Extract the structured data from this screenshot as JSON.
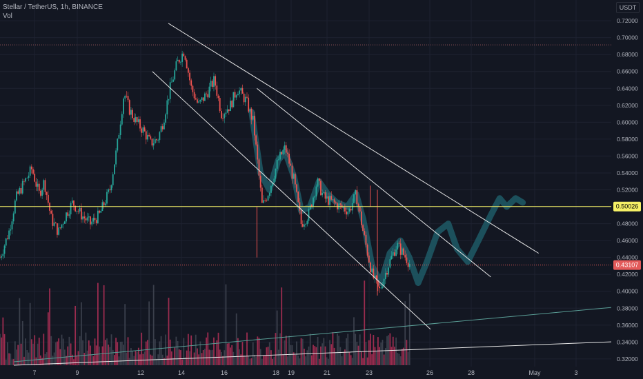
{
  "header": {
    "title": "Stellar / TetherUS, 1h, BINANCE",
    "vol_label": "Vol"
  },
  "price_scale": {
    "currency": "USDT"
  },
  "colors": {
    "background": "#131722",
    "grid": "#1e2230",
    "up": "#26a69a",
    "down": "#ef5350",
    "vol_up": "#3a3f4b",
    "vol_down": "#9b2c4f",
    "projection": "#1f5a66",
    "trendline": "#e6e6e6",
    "support": "#f5f066",
    "support_tag_text": "#000000",
    "current_tag": "#e35a5a",
    "dotted_high": "#f08080",
    "teal_line": "#5a9e96",
    "axis_text": "#b2b5be"
  },
  "chart_data": {
    "type": "candlestick",
    "title": "Stellar / TetherUS, 1h, BINANCE",
    "timeframe": "1h",
    "ylim": [
      0.315,
      0.725
    ],
    "x_ticks": [
      "7",
      "9",
      "12",
      "14",
      "16",
      "18",
      "19",
      "21",
      "23",
      "26",
      "28",
      "May",
      "3"
    ],
    "y_ticks": [
      "0.72000",
      "0.70000",
      "0.68000",
      "0.66000",
      "0.64000",
      "0.62000",
      "0.60000",
      "0.58000",
      "0.56000",
      "0.54000",
      "0.52000",
      "0.50000",
      "0.48000",
      "0.46000",
      "0.44000",
      "0.42000",
      "0.40000",
      "0.38000",
      "0.36000",
      "0.34000",
      "0.32000"
    ],
    "price_path": [
      {
        "x": 0,
        "y": 0.44
      },
      {
        "x": 5,
        "y": 0.47
      },
      {
        "x": 9,
        "y": 0.51
      },
      {
        "x": 14,
        "y": 0.53
      },
      {
        "x": 18,
        "y": 0.545
      },
      {
        "x": 22,
        "y": 0.515
      },
      {
        "x": 25,
        "y": 0.53
      },
      {
        "x": 29,
        "y": 0.485
      },
      {
        "x": 33,
        "y": 0.47
      },
      {
        "x": 37,
        "y": 0.49
      },
      {
        "x": 41,
        "y": 0.505
      },
      {
        "x": 46,
        "y": 0.49
      },
      {
        "x": 51,
        "y": 0.48
      },
      {
        "x": 56,
        "y": 0.49
      },
      {
        "x": 62,
        "y": 0.52
      },
      {
        "x": 66,
        "y": 0.57
      },
      {
        "x": 70,
        "y": 0.635
      },
      {
        "x": 73,
        "y": 0.615
      },
      {
        "x": 77,
        "y": 0.6
      },
      {
        "x": 81,
        "y": 0.59
      },
      {
        "x": 85,
        "y": 0.575
      },
      {
        "x": 89,
        "y": 0.58
      },
      {
        "x": 92,
        "y": 0.6
      },
      {
        "x": 96,
        "y": 0.64
      },
      {
        "x": 100,
        "y": 0.67
      },
      {
        "x": 104,
        "y": 0.685
      },
      {
        "x": 108,
        "y": 0.64
      },
      {
        "x": 112,
        "y": 0.62
      },
      {
        "x": 117,
        "y": 0.635
      },
      {
        "x": 121,
        "y": 0.65
      },
      {
        "x": 125,
        "y": 0.61
      },
      {
        "x": 130,
        "y": 0.62
      },
      {
        "x": 134,
        "y": 0.64
      },
      {
        "x": 139,
        "y": 0.625
      },
      {
        "x": 143,
        "y": 0.6
      },
      {
        "x": 148,
        "y": 0.5
      },
      {
        "x": 152,
        "y": 0.52
      },
      {
        "x": 157,
        "y": 0.555
      },
      {
        "x": 161,
        "y": 0.57
      },
      {
        "x": 166,
        "y": 0.53
      },
      {
        "x": 170,
        "y": 0.48
      },
      {
        "x": 174,
        "y": 0.49
      },
      {
        "x": 179,
        "y": 0.53
      },
      {
        "x": 183,
        "y": 0.51
      },
      {
        "x": 188,
        "y": 0.505
      },
      {
        "x": 192,
        "y": 0.5
      },
      {
        "x": 197,
        "y": 0.495
      },
      {
        "x": 201,
        "y": 0.515
      },
      {
        "x": 205,
        "y": 0.47
      },
      {
        "x": 210,
        "y": 0.42
      },
      {
        "x": 214,
        "y": 0.4
      },
      {
        "x": 219,
        "y": 0.43
      },
      {
        "x": 224,
        "y": 0.455
      },
      {
        "x": 229,
        "y": 0.44
      },
      {
        "x": 232,
        "y": 0.43
      }
    ],
    "x_domain": [
      0,
      345
    ],
    "projection_path": [
      {
        "x": 142,
        "y": 0.612
      },
      {
        "x": 147,
        "y": 0.54
      },
      {
        "x": 152,
        "y": 0.52
      },
      {
        "x": 157,
        "y": 0.555
      },
      {
        "x": 161,
        "y": 0.565
      },
      {
        "x": 166,
        "y": 0.535
      },
      {
        "x": 170,
        "y": 0.495
      },
      {
        "x": 175,
        "y": 0.5
      },
      {
        "x": 180,
        "y": 0.53
      },
      {
        "x": 185,
        "y": 0.515
      },
      {
        "x": 190,
        "y": 0.505
      },
      {
        "x": 196,
        "y": 0.5
      },
      {
        "x": 201,
        "y": 0.515
      },
      {
        "x": 205,
        "y": 0.485
      },
      {
        "x": 210,
        "y": 0.43
      },
      {
        "x": 215,
        "y": 0.41
      },
      {
        "x": 220,
        "y": 0.445
      },
      {
        "x": 226,
        "y": 0.46
      },
      {
        "x": 231,
        "y": 0.44
      },
      {
        "x": 236,
        "y": 0.41
      },
      {
        "x": 241,
        "y": 0.435
      },
      {
        "x": 247,
        "y": 0.47
      },
      {
        "x": 253,
        "y": 0.48
      },
      {
        "x": 258,
        "y": 0.45
      },
      {
        "x": 264,
        "y": 0.435
      },
      {
        "x": 270,
        "y": 0.46
      },
      {
        "x": 277,
        "y": 0.49
      },
      {
        "x": 282,
        "y": 0.51
      },
      {
        "x": 286,
        "y": 0.5
      },
      {
        "x": 291,
        "y": 0.51
      },
      {
        "x": 295,
        "y": 0.505
      }
    ],
    "support_level": 0.50026,
    "support_label": "0.50026",
    "current_price": 0.43107,
    "current_label": "0.43107",
    "recent_high_level": 0.6915,
    "trendlines": [
      {
        "name": "upper-channel-line",
        "x1": 95,
        "y1": 0.717,
        "x2": 304,
        "y2": 0.445
      },
      {
        "name": "mid-channel-line",
        "x1": 145,
        "y1": 0.64,
        "x2": 277,
        "y2": 0.417
      },
      {
        "name": "lower-channel-line",
        "x1": 86,
        "y1": 0.66,
        "x2": 243,
        "y2": 0.355
      }
    ]
  }
}
